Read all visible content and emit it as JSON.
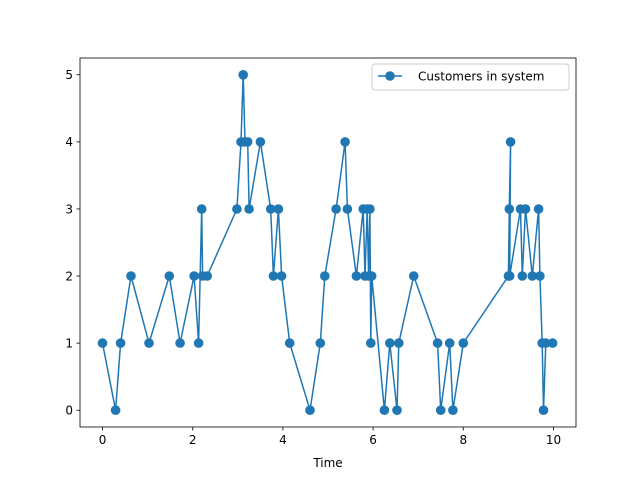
{
  "chart_data": {
    "type": "line",
    "title": "",
    "xlabel": "Time",
    "ylabel": "",
    "xlim": [
      -0.5,
      10.5
    ],
    "ylim": [
      -0.25,
      5.25
    ],
    "xticks": [
      0,
      2,
      4,
      6,
      8,
      10
    ],
    "yticks": [
      0,
      1,
      2,
      3,
      4,
      5
    ],
    "grid": false,
    "legend_position": "top-right",
    "colors": {
      "series": "#1f77b4"
    },
    "series": [
      {
        "name": "Customers in system",
        "marker": "circle",
        "points": [
          [
            0.0,
            1
          ],
          [
            0.29,
            0
          ],
          [
            0.4,
            1
          ],
          [
            0.63,
            2
          ],
          [
            1.03,
            1
          ],
          [
            1.48,
            2
          ],
          [
            1.72,
            1
          ],
          [
            2.03,
            2
          ],
          [
            2.13,
            1
          ],
          [
            2.2,
            3
          ],
          [
            2.22,
            2
          ],
          [
            2.32,
            2
          ],
          [
            2.98,
            3
          ],
          [
            3.07,
            4
          ],
          [
            3.12,
            5
          ],
          [
            3.16,
            4
          ],
          [
            3.22,
            4
          ],
          [
            3.25,
            3
          ],
          [
            3.5,
            4
          ],
          [
            3.73,
            3
          ],
          [
            3.79,
            2
          ],
          [
            3.9,
            3
          ],
          [
            3.97,
            2
          ],
          [
            4.15,
            1
          ],
          [
            4.6,
            0
          ],
          [
            4.83,
            1
          ],
          [
            4.93,
            2
          ],
          [
            5.18,
            3
          ],
          [
            5.38,
            4
          ],
          [
            5.43,
            3
          ],
          [
            5.63,
            2
          ],
          [
            5.78,
            3
          ],
          [
            5.82,
            2
          ],
          [
            5.87,
            3
          ],
          [
            5.9,
            2
          ],
          [
            5.93,
            3
          ],
          [
            5.95,
            1
          ],
          [
            5.97,
            2
          ],
          [
            6.25,
            0
          ],
          [
            6.37,
            1
          ],
          [
            6.53,
            0
          ],
          [
            6.57,
            1
          ],
          [
            6.9,
            2
          ],
          [
            7.43,
            1
          ],
          [
            7.5,
            0
          ],
          [
            7.7,
            1
          ],
          [
            7.77,
            0
          ],
          [
            8.0,
            1
          ],
          [
            9.0,
            2
          ],
          [
            9.02,
            3
          ],
          [
            9.05,
            4
          ],
          [
            9.03,
            2
          ],
          [
            9.27,
            3
          ],
          [
            9.31,
            2
          ],
          [
            9.38,
            3
          ],
          [
            9.53,
            2
          ],
          [
            9.67,
            3
          ],
          [
            9.7,
            2
          ],
          [
            9.75,
            1
          ],
          [
            9.78,
            0
          ],
          [
            9.83,
            1
          ],
          [
            9.98,
            1
          ]
        ]
      }
    ]
  }
}
